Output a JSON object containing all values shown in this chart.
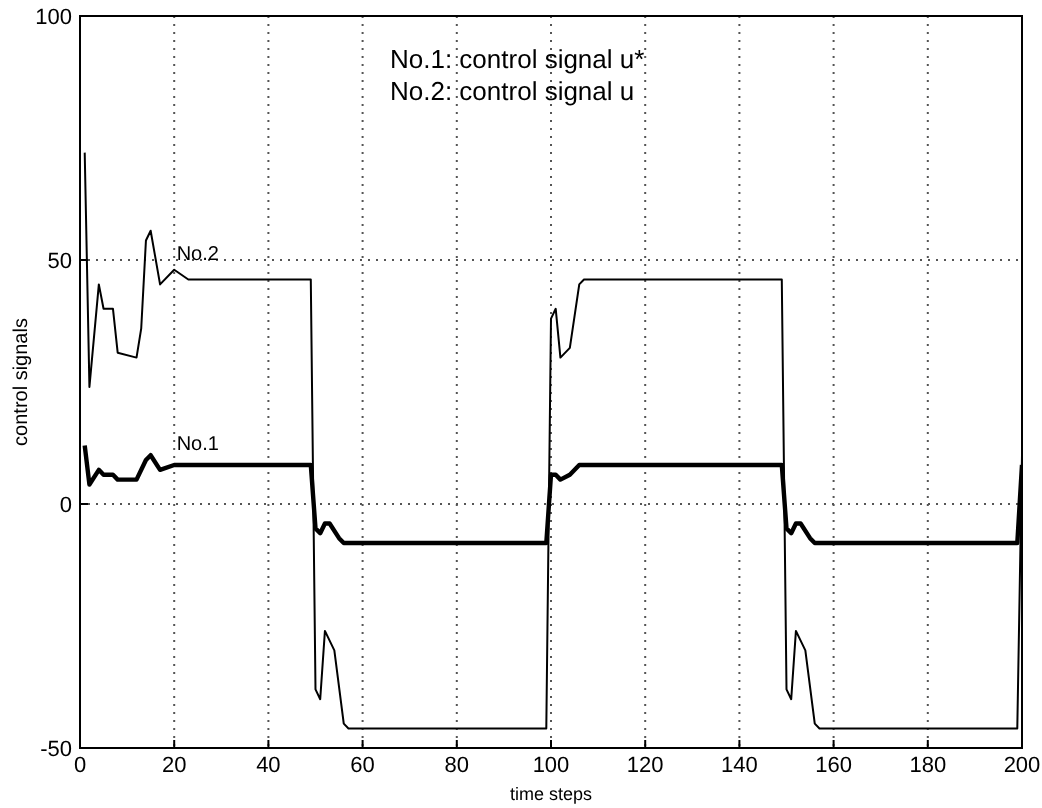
{
  "chart_data": {
    "type": "line",
    "xlabel": "time steps",
    "ylabel": "control signals",
    "xlim": [
      0,
      200
    ],
    "xticks": [
      0,
      20,
      40,
      60,
      80,
      100,
      120,
      140,
      160,
      180,
      200
    ],
    "ylim": [
      -50,
      100
    ],
    "yticks": [
      -50,
      0,
      50,
      100
    ],
    "grid": true,
    "marker": "none",
    "line_style": "solid",
    "annotations": [
      "No.1: control signal u*",
      "No.2: control signal u",
      {
        "text": "No.2",
        "x": 25,
        "y": 48
      },
      {
        "text": "No.1",
        "x": 25,
        "y": 9
      }
    ],
    "series": [
      {
        "color": "#000000",
        "x": [
          1,
          2,
          4,
          5,
          7,
          8,
          12,
          14,
          15,
          17,
          20,
          49,
          50,
          51,
          52,
          53,
          55,
          56,
          99,
          100,
          101,
          102,
          104,
          106,
          149,
          150,
          151,
          152,
          153,
          155,
          156,
          199,
          200
        ],
        "values": [
          12,
          4,
          7,
          6,
          6,
          5,
          5,
          9,
          10,
          7,
          8,
          8,
          -5,
          -6,
          -4,
          -4,
          -7,
          -8,
          -8,
          6,
          6,
          5,
          6,
          8,
          8,
          -5,
          -6,
          -4,
          -4,
          -7,
          -8,
          -8,
          8
        ]
      },
      {
        "color": "#000000",
        "x": [
          1,
          2,
          4,
          5,
          7,
          8,
          12,
          13,
          14,
          15,
          17,
          20,
          23,
          49,
          50,
          51,
          52,
          54,
          56,
          57,
          99,
          100,
          101,
          102,
          104,
          106,
          107,
          149,
          150,
          151,
          152,
          154,
          156,
          157,
          199,
          200
        ],
        "values": [
          72,
          24,
          45,
          40,
          40,
          31,
          30,
          36,
          54,
          56,
          45,
          48,
          46,
          46,
          -38,
          -40,
          -26,
          -30,
          -45,
          -46,
          -46,
          38,
          40,
          30,
          32,
          45,
          46,
          46,
          -38,
          -40,
          -26,
          -30,
          -45,
          -46,
          -46,
          10
        ]
      }
    ]
  }
}
